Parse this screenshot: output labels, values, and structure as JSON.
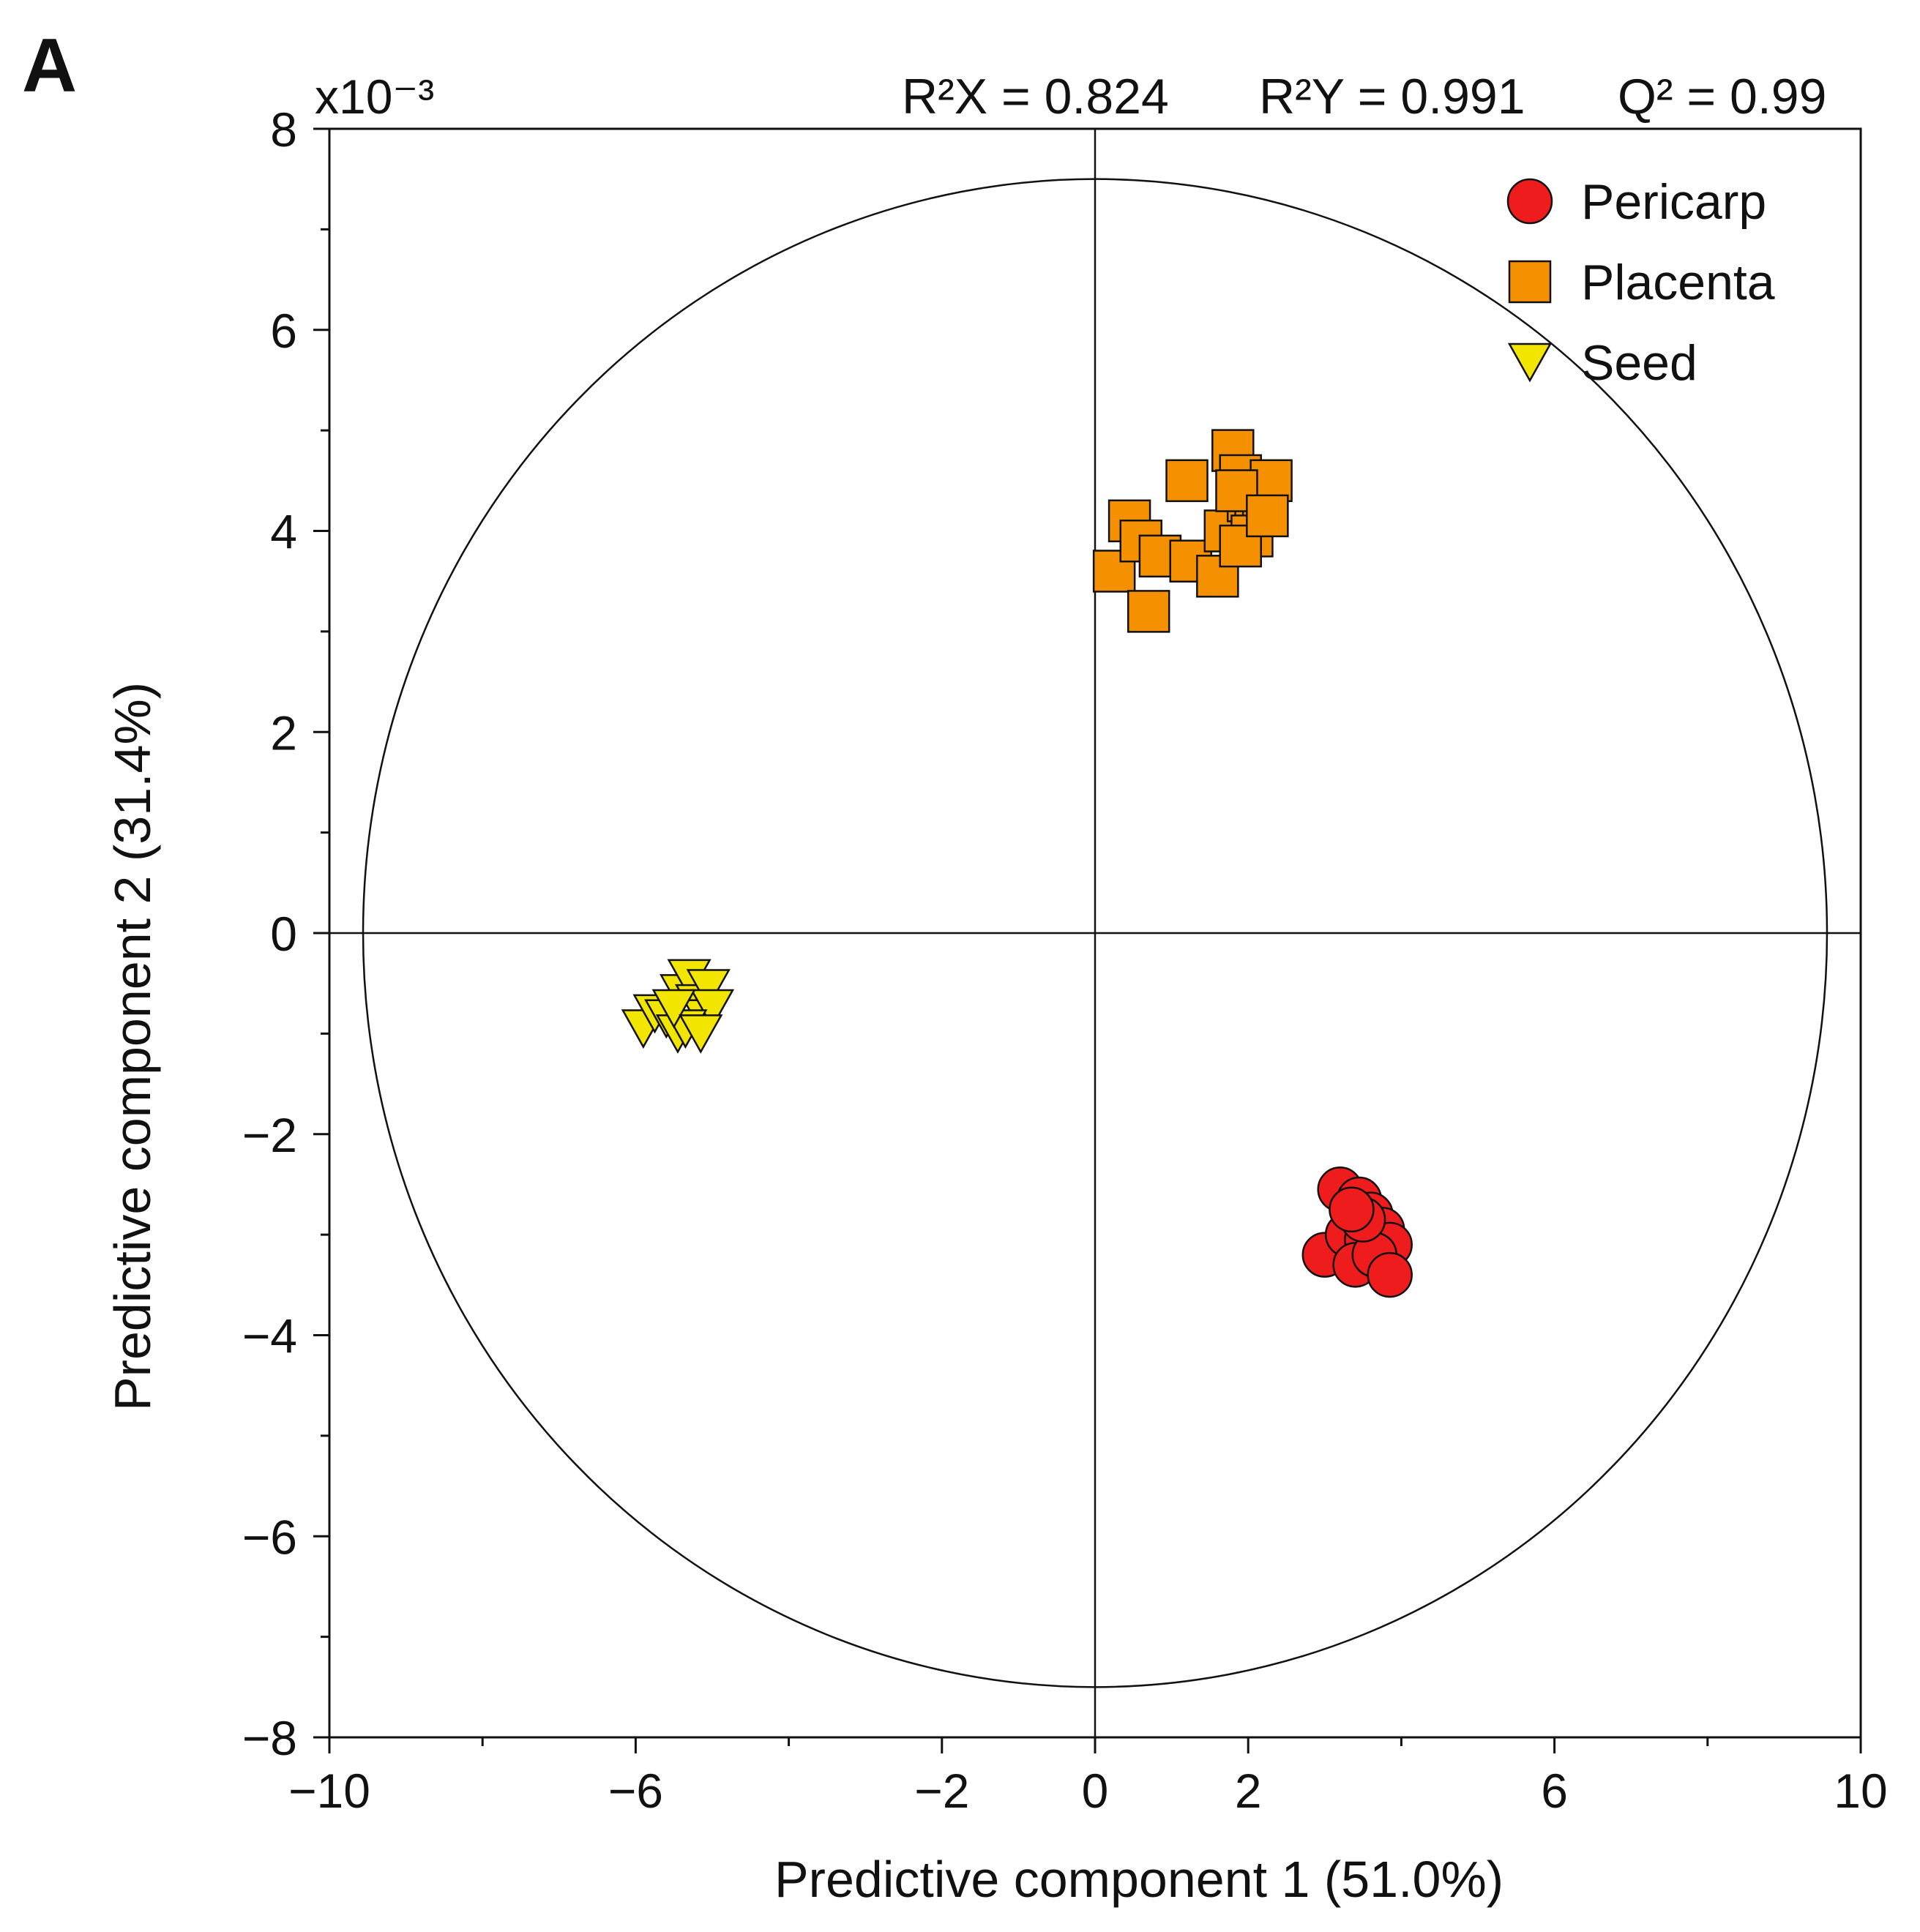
{
  "chart_data": {
    "type": "scatter",
    "panel_label": "A",
    "title": "",
    "y_multiplier_label": "x10⁻³",
    "stats": {
      "r2x": "R²X = 0.824",
      "r2y": "R²Y = 0.991",
      "q2": "Q² = 0.99"
    },
    "xlabel": "Predictive component 1 (51.0%)",
    "ylabel": "Predictive component 2 (31.4%)",
    "xlim": [
      -10,
      10
    ],
    "ylim": [
      -8,
      8
    ],
    "x_ticks": [
      -10,
      -6,
      -2,
      0,
      2,
      6,
      10
    ],
    "x_tick_labels": [
      "−10",
      "−6",
      "−2",
      "0",
      "2",
      "6",
      "10"
    ],
    "y_ticks": [
      -8,
      -6,
      -4,
      -2,
      0,
      2,
      4,
      6,
      8
    ],
    "y_tick_labels": [
      "−8",
      "−6",
      "−4",
      "−2",
      "0",
      "2",
      "4",
      "6",
      "8"
    ],
    "x_minor_ticks": [
      -8,
      -4,
      4,
      8
    ],
    "y_minor_ticks": [
      -7,
      -5,
      -3,
      -1,
      1,
      3,
      5,
      7
    ],
    "ellipse": {
      "rx": 9.56,
      "ry": 7.5
    },
    "legend": {
      "position": "top-right",
      "entries": [
        "Pericarp",
        "Placenta",
        "Seed"
      ]
    },
    "series": [
      {
        "name": "Pericarp",
        "marker": "circle",
        "color": "#ee1c1c",
        "points": [
          [
            3.0,
            -3.2
          ],
          [
            3.2,
            -2.55
          ],
          [
            3.45,
            -2.65
          ],
          [
            3.6,
            -2.8
          ],
          [
            3.75,
            -2.95
          ],
          [
            3.3,
            -3.0
          ],
          [
            3.55,
            -3.05
          ],
          [
            3.85,
            -3.1
          ],
          [
            3.4,
            -3.3
          ],
          [
            3.65,
            -3.2
          ],
          [
            3.5,
            -2.85
          ],
          [
            3.85,
            -3.4
          ],
          [
            3.35,
            -2.75
          ]
        ]
      },
      {
        "name": "Placenta",
        "marker": "square",
        "color": "#f59100",
        "points": [
          [
            0.25,
            3.6
          ],
          [
            0.45,
            4.1
          ],
          [
            0.6,
            3.9
          ],
          [
            0.7,
            3.2
          ],
          [
            0.85,
            3.75
          ],
          [
            1.2,
            4.5
          ],
          [
            1.25,
            3.7
          ],
          [
            1.6,
            3.55
          ],
          [
            1.7,
            4.0
          ],
          [
            1.8,
            4.8
          ],
          [
            1.9,
            4.55
          ],
          [
            2.0,
            4.3
          ],
          [
            2.1,
            4.2
          ],
          [
            2.2,
            4.35
          ],
          [
            2.3,
            4.5
          ],
          [
            2.05,
            3.95
          ],
          [
            1.9,
            3.85
          ],
          [
            1.85,
            4.4
          ],
          [
            2.25,
            4.15
          ]
        ]
      },
      {
        "name": "Seed",
        "marker": "triangle-down",
        "color": "#f2e600",
        "points": [
          [
            -5.9,
            -0.95
          ],
          [
            -5.75,
            -0.8
          ],
          [
            -5.6,
            -0.85
          ],
          [
            -5.45,
            -1.0
          ],
          [
            -5.4,
            -0.6
          ],
          [
            -5.3,
            -0.45
          ],
          [
            -5.2,
            -0.7
          ],
          [
            -5.1,
            -0.85
          ],
          [
            -5.05,
            -0.55
          ],
          [
            -5.0,
            -0.75
          ],
          [
            -5.35,
            -0.95
          ],
          [
            -5.5,
            -0.75
          ],
          [
            -5.15,
            -1.0
          ]
        ]
      }
    ]
  }
}
